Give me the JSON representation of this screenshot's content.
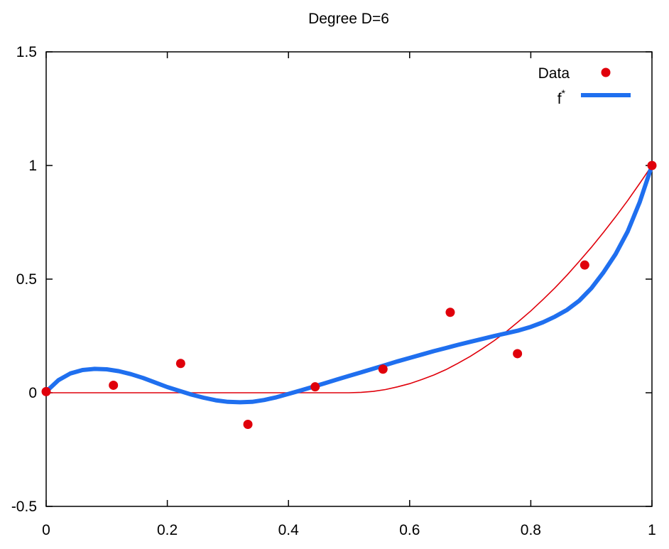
{
  "chart_data": {
    "type": "line",
    "title": "Degree D=6",
    "xlabel": "",
    "ylabel": "",
    "xlim": [
      0,
      1
    ],
    "ylim": [
      -0.5,
      1.5
    ],
    "x_ticks": [
      "0",
      "0.2",
      "0.4",
      "0.6",
      "0.8",
      "1"
    ],
    "y_ticks": [
      "-0.5",
      "0",
      "0.5",
      "1",
      "1.5"
    ],
    "grid": false,
    "legend_position": "top-right",
    "colors": {
      "data": "#e0000b",
      "fit": "#1f6fef",
      "truth": "#e0000b"
    },
    "series": [
      {
        "name": "Data",
        "style": "points",
        "x": [
          0,
          0.111,
          0.222,
          0.333,
          0.444,
          0.556,
          0.667,
          0.778,
          0.889,
          1.0
        ],
        "y": [
          0.005,
          0.033,
          0.129,
          -0.139,
          0.026,
          0.104,
          0.354,
          0.172,
          0.562,
          1.0
        ]
      },
      {
        "name": "f",
        "name_superscript": "*",
        "style": "thick-line",
        "x": [
          0,
          0.02,
          0.04,
          0.06,
          0.08,
          0.1,
          0.12,
          0.14,
          0.16,
          0.18,
          0.2,
          0.22,
          0.24,
          0.26,
          0.28,
          0.3,
          0.32,
          0.34,
          0.36,
          0.38,
          0.4,
          0.42,
          0.44,
          0.46,
          0.48,
          0.5,
          0.52,
          0.54,
          0.56,
          0.58,
          0.6,
          0.62,
          0.64,
          0.66,
          0.68,
          0.7,
          0.72,
          0.74,
          0.76,
          0.78,
          0.8,
          0.82,
          0.84,
          0.86,
          0.88,
          0.9,
          0.92,
          0.94,
          0.96,
          0.98,
          1.0
        ],
        "y": [
          0.005,
          0.055,
          0.085,
          0.1,
          0.105,
          0.103,
          0.095,
          0.082,
          0.065,
          0.045,
          0.025,
          0.008,
          -0.008,
          -0.022,
          -0.033,
          -0.04,
          -0.042,
          -0.04,
          -0.032,
          -0.02,
          -0.005,
          0.01,
          0.026,
          0.042,
          0.058,
          0.074,
          0.09,
          0.106,
          0.122,
          0.138,
          0.153,
          0.168,
          0.183,
          0.197,
          0.211,
          0.224,
          0.237,
          0.25,
          0.262,
          0.274,
          0.29,
          0.31,
          0.335,
          0.365,
          0.405,
          0.46,
          0.53,
          0.61,
          0.71,
          0.84,
          1.0
        ]
      },
      {
        "name": "",
        "style": "thin-line",
        "x": [
          0,
          0.5,
          0.52,
          0.54,
          0.56,
          0.58,
          0.6,
          0.62,
          0.64,
          0.66,
          0.68,
          0.7,
          0.72,
          0.74,
          0.76,
          0.78,
          0.8,
          0.82,
          0.84,
          0.86,
          0.88,
          0.9,
          0.92,
          0.94,
          0.96,
          0.98,
          1.0
        ],
        "y": [
          0,
          0,
          0.002,
          0.006,
          0.014,
          0.026,
          0.04,
          0.058,
          0.078,
          0.102,
          0.13,
          0.16,
          0.194,
          0.23,
          0.27,
          0.314,
          0.36,
          0.41,
          0.462,
          0.518,
          0.578,
          0.64,
          0.706,
          0.774,
          0.846,
          0.922,
          1.0
        ]
      }
    ]
  }
}
